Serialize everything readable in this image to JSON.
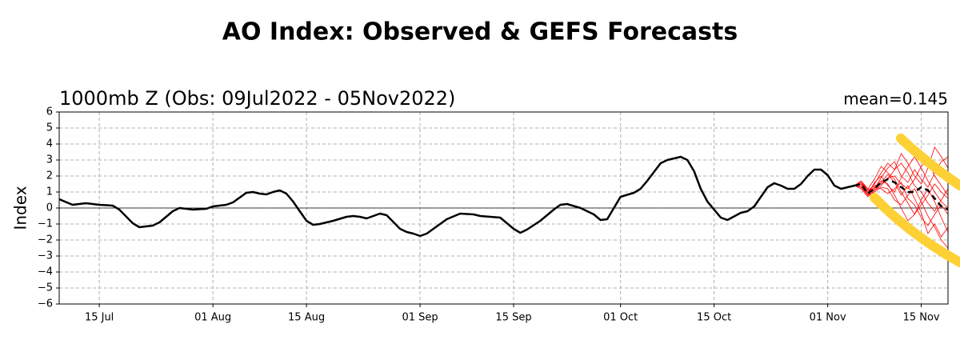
{
  "chart_data": {
    "type": "line",
    "title": "AO Index: Observed & GEFS Forecasts",
    "subtitle": "1000mb Z (Obs: 09Jul2022 - 05Nov2022)",
    "annotation": "mean=0.145",
    "ylabel": "Index",
    "title_color": "#0000ff",
    "grid": true,
    "xlim": [
      "2022-07-09",
      "2022-11-19"
    ],
    "ylim": [
      -6,
      6
    ],
    "xticks": [
      {
        "value": "2022-07-15",
        "label": "15 Jul"
      },
      {
        "value": "2022-08-01",
        "label": "01 Aug"
      },
      {
        "value": "2022-08-15",
        "label": "15 Aug"
      },
      {
        "value": "2022-09-01",
        "label": "01 Sep"
      },
      {
        "value": "2022-09-15",
        "label": "15 Sep"
      },
      {
        "value": "2022-10-01",
        "label": "01 Oct"
      },
      {
        "value": "2022-10-15",
        "label": "15 Oct"
      },
      {
        "value": "2022-11-01",
        "label": "01 Nov"
      },
      {
        "value": "2022-11-15",
        "label": "15 Nov"
      }
    ],
    "yticks": [
      {
        "value": -6,
        "label": "−6"
      },
      {
        "value": -5,
        "label": "−5"
      },
      {
        "value": -4,
        "label": "−4"
      },
      {
        "value": -3,
        "label": "−3"
      },
      {
        "value": -2,
        "label": "−2"
      },
      {
        "value": -1,
        "label": "−1"
      },
      0,
      1,
      2,
      3,
      4,
      5,
      6
    ],
    "ensemble": {
      "color": "#ff0000",
      "x": [
        "2022-11-05",
        "2022-11-06",
        "2022-11-07",
        "2022-11-08",
        "2022-11-09",
        "2022-11-10",
        "2022-11-11",
        "2022-11-12",
        "2022-11-13",
        "2022-11-14",
        "2022-11-15",
        "2022-11-16",
        "2022-11-17",
        "2022-11-18",
        "2022-11-19"
      ],
      "members": [
        [
          1.4,
          1.6,
          1.0,
          1.5,
          2.2,
          2.8,
          2.4,
          3.4,
          2.8,
          2.0,
          1.5,
          2.5,
          3.8,
          3.2,
          2.5
        ],
        [
          1.4,
          1.3,
          0.8,
          1.0,
          1.3,
          1.2,
          0.5,
          0.2,
          0.8,
          1.2,
          0.4,
          -0.5,
          -1.2,
          -2.0,
          -2.5
        ],
        [
          1.4,
          1.7,
          1.2,
          1.8,
          2.6,
          2.2,
          1.8,
          1.0,
          0.3,
          -0.4,
          0.2,
          0.8,
          1.5,
          1.0,
          0.6
        ],
        [
          1.4,
          1.2,
          0.7,
          1.1,
          1.4,
          1.9,
          2.0,
          1.5,
          1.2,
          1.8,
          2.6,
          3.0,
          2.0,
          1.4,
          0.8
        ],
        [
          1.4,
          1.5,
          0.9,
          1.3,
          1.7,
          1.5,
          0.8,
          0.0,
          -0.8,
          -0.4,
          0.5,
          1.2,
          0.4,
          -0.6,
          -1.5
        ],
        [
          1.4,
          1.6,
          1.1,
          1.4,
          1.5,
          1.8,
          2.4,
          2.8,
          2.2,
          1.4,
          1.0,
          0.3,
          -0.2,
          0.5,
          1.2
        ],
        [
          1.4,
          1.4,
          0.8,
          1.2,
          1.9,
          2.5,
          2.9,
          2.0,
          1.6,
          2.4,
          1.8,
          1.3,
          2.2,
          2.9,
          3.2
        ],
        [
          1.4,
          1.5,
          1.0,
          1.3,
          1.2,
          0.9,
          1.2,
          1.6,
          0.6,
          0.2,
          -0.6,
          -1.1,
          -0.4,
          0.2,
          -0.4
        ],
        [
          1.4,
          1.3,
          0.8,
          1.6,
          2.0,
          1.4,
          1.0,
          1.9,
          2.6,
          3.2,
          2.5,
          1.7,
          1.0,
          0.4,
          0.0
        ],
        [
          1.4,
          1.6,
          1.2,
          1.1,
          1.6,
          2.1,
          1.6,
          0.8,
          1.4,
          0.6,
          -0.3,
          -1.6,
          -1.0,
          -1.8,
          -1.2
        ]
      ]
    },
    "series": [
      {
        "color": "#000000",
        "dashed": false,
        "x": [
          "2022-07-09",
          "2022-07-11",
          "2022-07-13",
          "2022-07-15",
          "2022-07-17",
          "2022-07-18",
          "2022-07-20",
          "2022-07-21",
          "2022-07-23",
          "2022-07-24",
          "2022-07-26",
          "2022-07-27",
          "2022-07-29",
          "2022-07-31",
          "2022-08-01",
          "2022-08-03",
          "2022-08-04",
          "2022-08-06",
          "2022-08-07",
          "2022-08-08",
          "2022-08-09",
          "2022-08-10",
          "2022-08-11",
          "2022-08-12",
          "2022-08-13",
          "2022-08-14",
          "2022-08-15",
          "2022-08-16",
          "2022-08-17",
          "2022-08-19",
          "2022-08-21",
          "2022-08-22",
          "2022-08-23",
          "2022-08-24",
          "2022-08-26",
          "2022-08-27",
          "2022-08-29",
          "2022-08-30",
          "2022-08-31",
          "2022-09-01",
          "2022-09-02",
          "2022-09-05",
          "2022-09-07",
          "2022-09-09",
          "2022-09-10",
          "2022-09-13",
          "2022-09-15",
          "2022-09-16",
          "2022-09-17",
          "2022-09-19",
          "2022-09-21",
          "2022-09-22",
          "2022-09-23",
          "2022-09-25",
          "2022-09-27",
          "2022-09-28",
          "2022-09-29",
          "2022-10-01",
          "2022-10-03",
          "2022-10-04",
          "2022-10-05",
          "2022-10-07",
          "2022-10-08",
          "2022-10-10",
          "2022-10-11",
          "2022-10-12",
          "2022-10-13",
          "2022-10-14",
          "2022-10-16",
          "2022-10-17",
          "2022-10-19",
          "2022-10-20",
          "2022-10-21",
          "2022-10-23",
          "2022-10-24",
          "2022-10-25",
          "2022-10-26",
          "2022-10-27",
          "2022-10-28",
          "2022-10-29",
          "2022-10-30",
          "2022-10-31",
          "2022-11-01",
          "2022-11-02",
          "2022-11-03",
          "2022-11-04",
          "2022-11-05"
        ],
        "values": [
          0.55,
          0.2,
          0.3,
          0.2,
          0.15,
          -0.1,
          -0.95,
          -1.2,
          -1.1,
          -0.9,
          -0.2,
          0.0,
          -0.1,
          -0.05,
          0.1,
          0.2,
          0.35,
          0.95,
          1.0,
          0.9,
          0.85,
          1.0,
          1.1,
          0.9,
          0.4,
          -0.2,
          -0.8,
          -1.05,
          -1.0,
          -0.8,
          -0.55,
          -0.5,
          -0.55,
          -0.65,
          -0.35,
          -0.45,
          -1.3,
          -1.5,
          -1.6,
          -1.75,
          -1.6,
          -0.7,
          -0.35,
          -0.4,
          -0.5,
          -0.6,
          -1.3,
          -1.55,
          -1.35,
          -0.8,
          -0.1,
          0.2,
          0.25,
          0.0,
          -0.4,
          -0.75,
          -0.7,
          0.7,
          0.95,
          1.2,
          1.7,
          2.8,
          3.0,
          3.2,
          3.0,
          2.3,
          1.2,
          0.4,
          -0.6,
          -0.75,
          -0.3,
          -0.2,
          0.1,
          1.3,
          1.55,
          1.4,
          1.2,
          1.2,
          1.5,
          2.0,
          2.4,
          2.4,
          2.05,
          1.4,
          1.2,
          1.3,
          1.4
        ]
      },
      {
        "color": "#000000",
        "dashed": true,
        "x": [
          "2022-11-05",
          "2022-11-06",
          "2022-11-07",
          "2022-11-08",
          "2022-11-09",
          "2022-11-10",
          "2022-11-11",
          "2022-11-12",
          "2022-11-13",
          "2022-11-14",
          "2022-11-15",
          "2022-11-16",
          "2022-11-17",
          "2022-11-18",
          "2022-11-19"
        ],
        "values": [
          1.4,
          1.5,
          0.9,
          1.2,
          1.6,
          1.8,
          1.6,
          1.3,
          1.0,
          1.0,
          1.3,
          1.1,
          0.6,
          0.1,
          -0.1
        ]
      }
    ]
  }
}
